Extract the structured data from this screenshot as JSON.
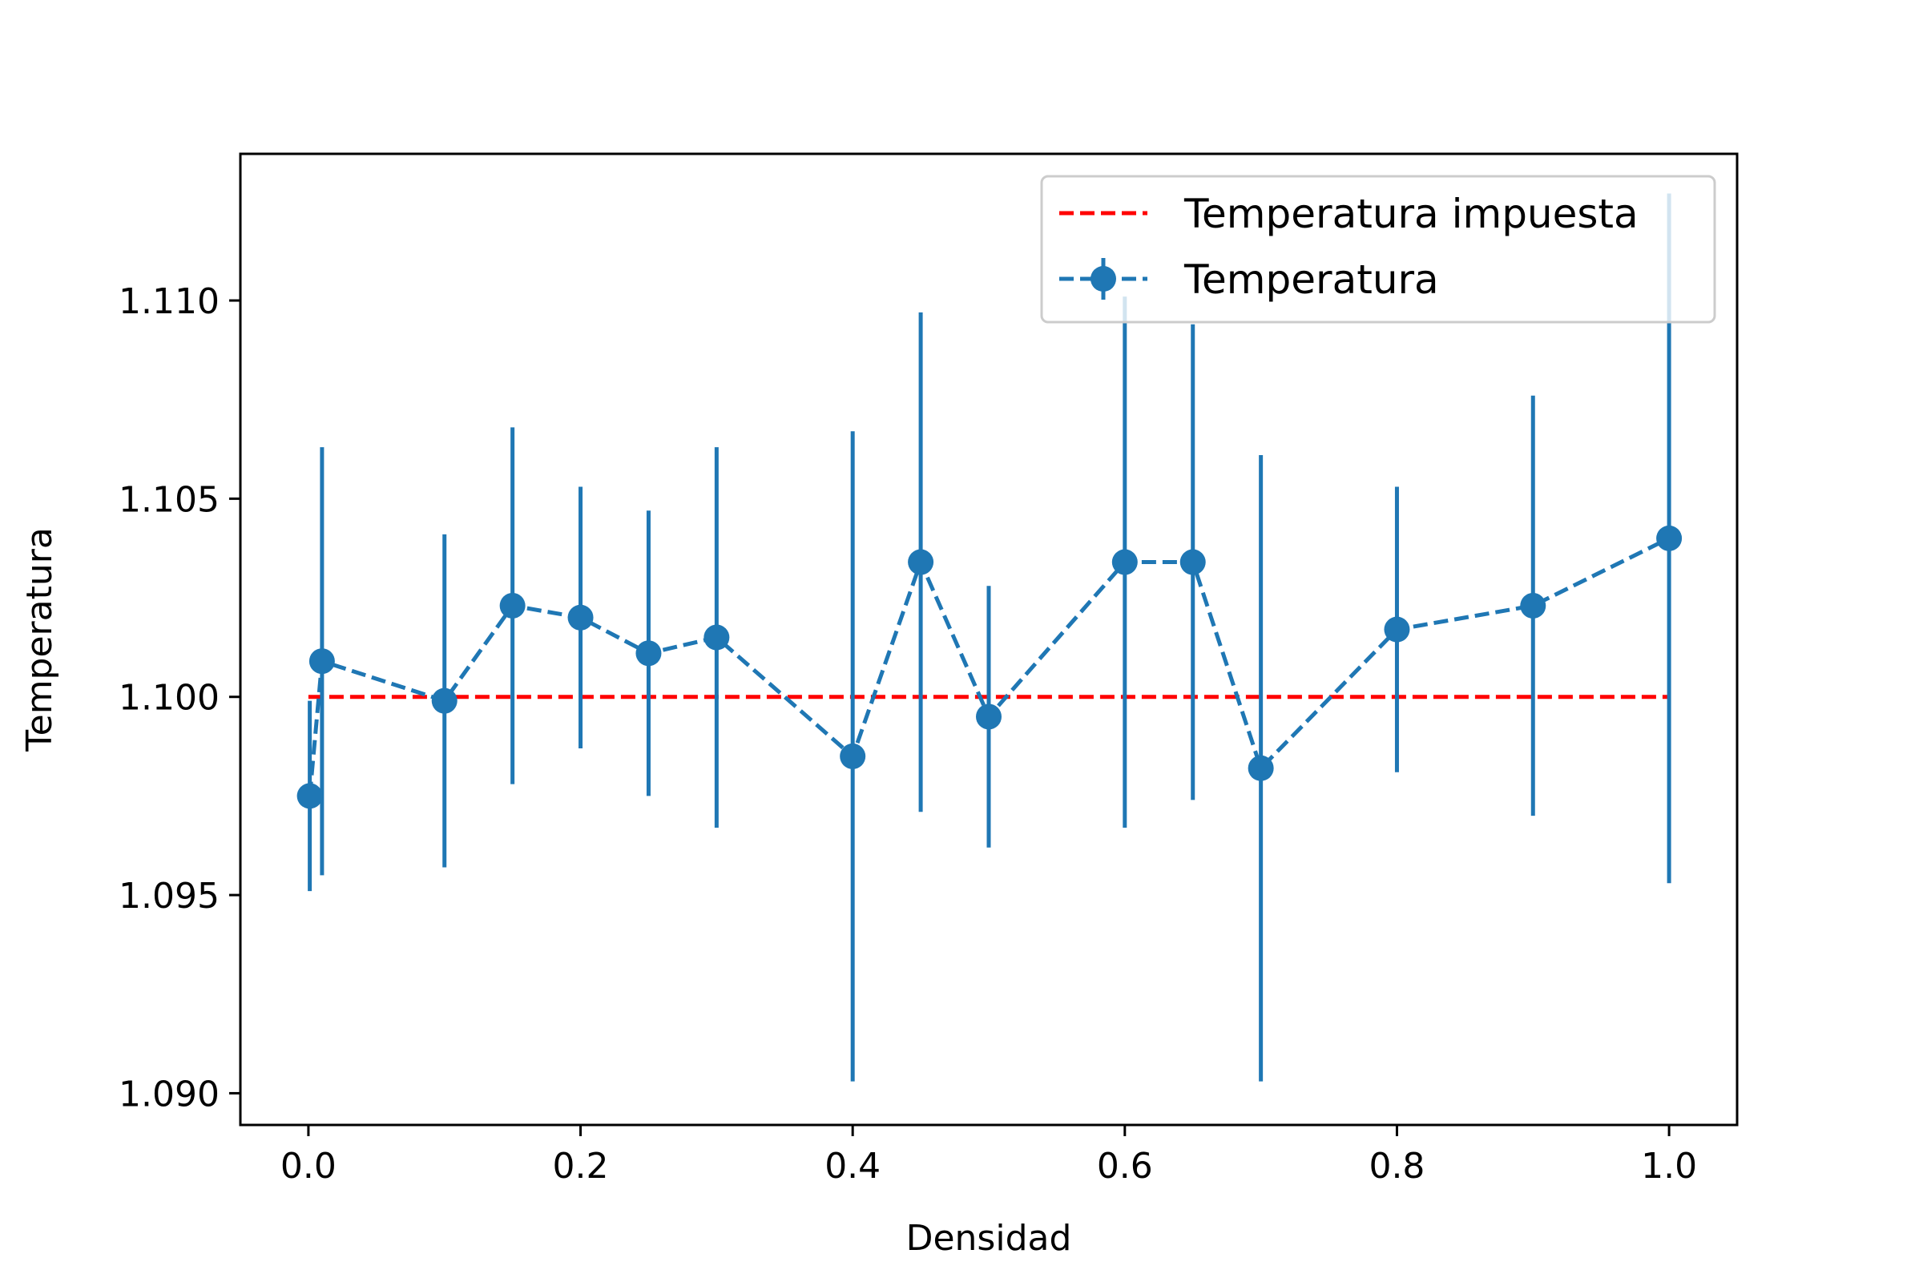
{
  "chart_data": {
    "type": "line",
    "title": "",
    "xlabel": "Densidad",
    "ylabel": "Temperatura",
    "xlim": [
      -0.05,
      1.05
    ],
    "ylim": [
      1.0892,
      1.1137
    ],
    "xticks": [
      0.0,
      0.2,
      0.4,
      0.6,
      0.8,
      1.0
    ],
    "xtick_labels": [
      "0.0",
      "0.2",
      "0.4",
      "0.6",
      "0.8",
      "1.0"
    ],
    "yticks": [
      1.09,
      1.095,
      1.1,
      1.105,
      1.11
    ],
    "ytick_labels": [
      "1.090",
      "1.095",
      "1.100",
      "1.105",
      "1.110"
    ],
    "grid": false,
    "legend_position": "top-right",
    "series": [
      {
        "name": "Temperatura impuesta",
        "kind": "reference-line",
        "style": "dashed",
        "color": "#ff0000",
        "x": [
          0.0,
          1.0
        ],
        "y": [
          1.1,
          1.1
        ]
      },
      {
        "name": "Temperatura",
        "kind": "errorbar",
        "style": "dashed",
        "marker": "circle",
        "color": "#1f77b4",
        "x": [
          0.001,
          0.01,
          0.1,
          0.15,
          0.2,
          0.25,
          0.3,
          0.4,
          0.45,
          0.5,
          0.6,
          0.65,
          0.7,
          0.8,
          0.9,
          1.0
        ],
        "y": [
          1.0975,
          1.1009,
          1.0999,
          1.1023,
          1.102,
          1.1011,
          1.1015,
          1.0985,
          1.1034,
          1.0995,
          1.1034,
          1.1034,
          1.0982,
          1.1017,
          1.1023,
          1.104
        ],
        "err": [
          0.0024,
          0.0054,
          0.0042,
          0.0045,
          0.0033,
          0.0036,
          0.0048,
          0.0082,
          0.0063,
          0.0033,
          0.0067,
          0.006,
          0.0079,
          0.0036,
          0.0053,
          0.0087
        ]
      }
    ]
  }
}
